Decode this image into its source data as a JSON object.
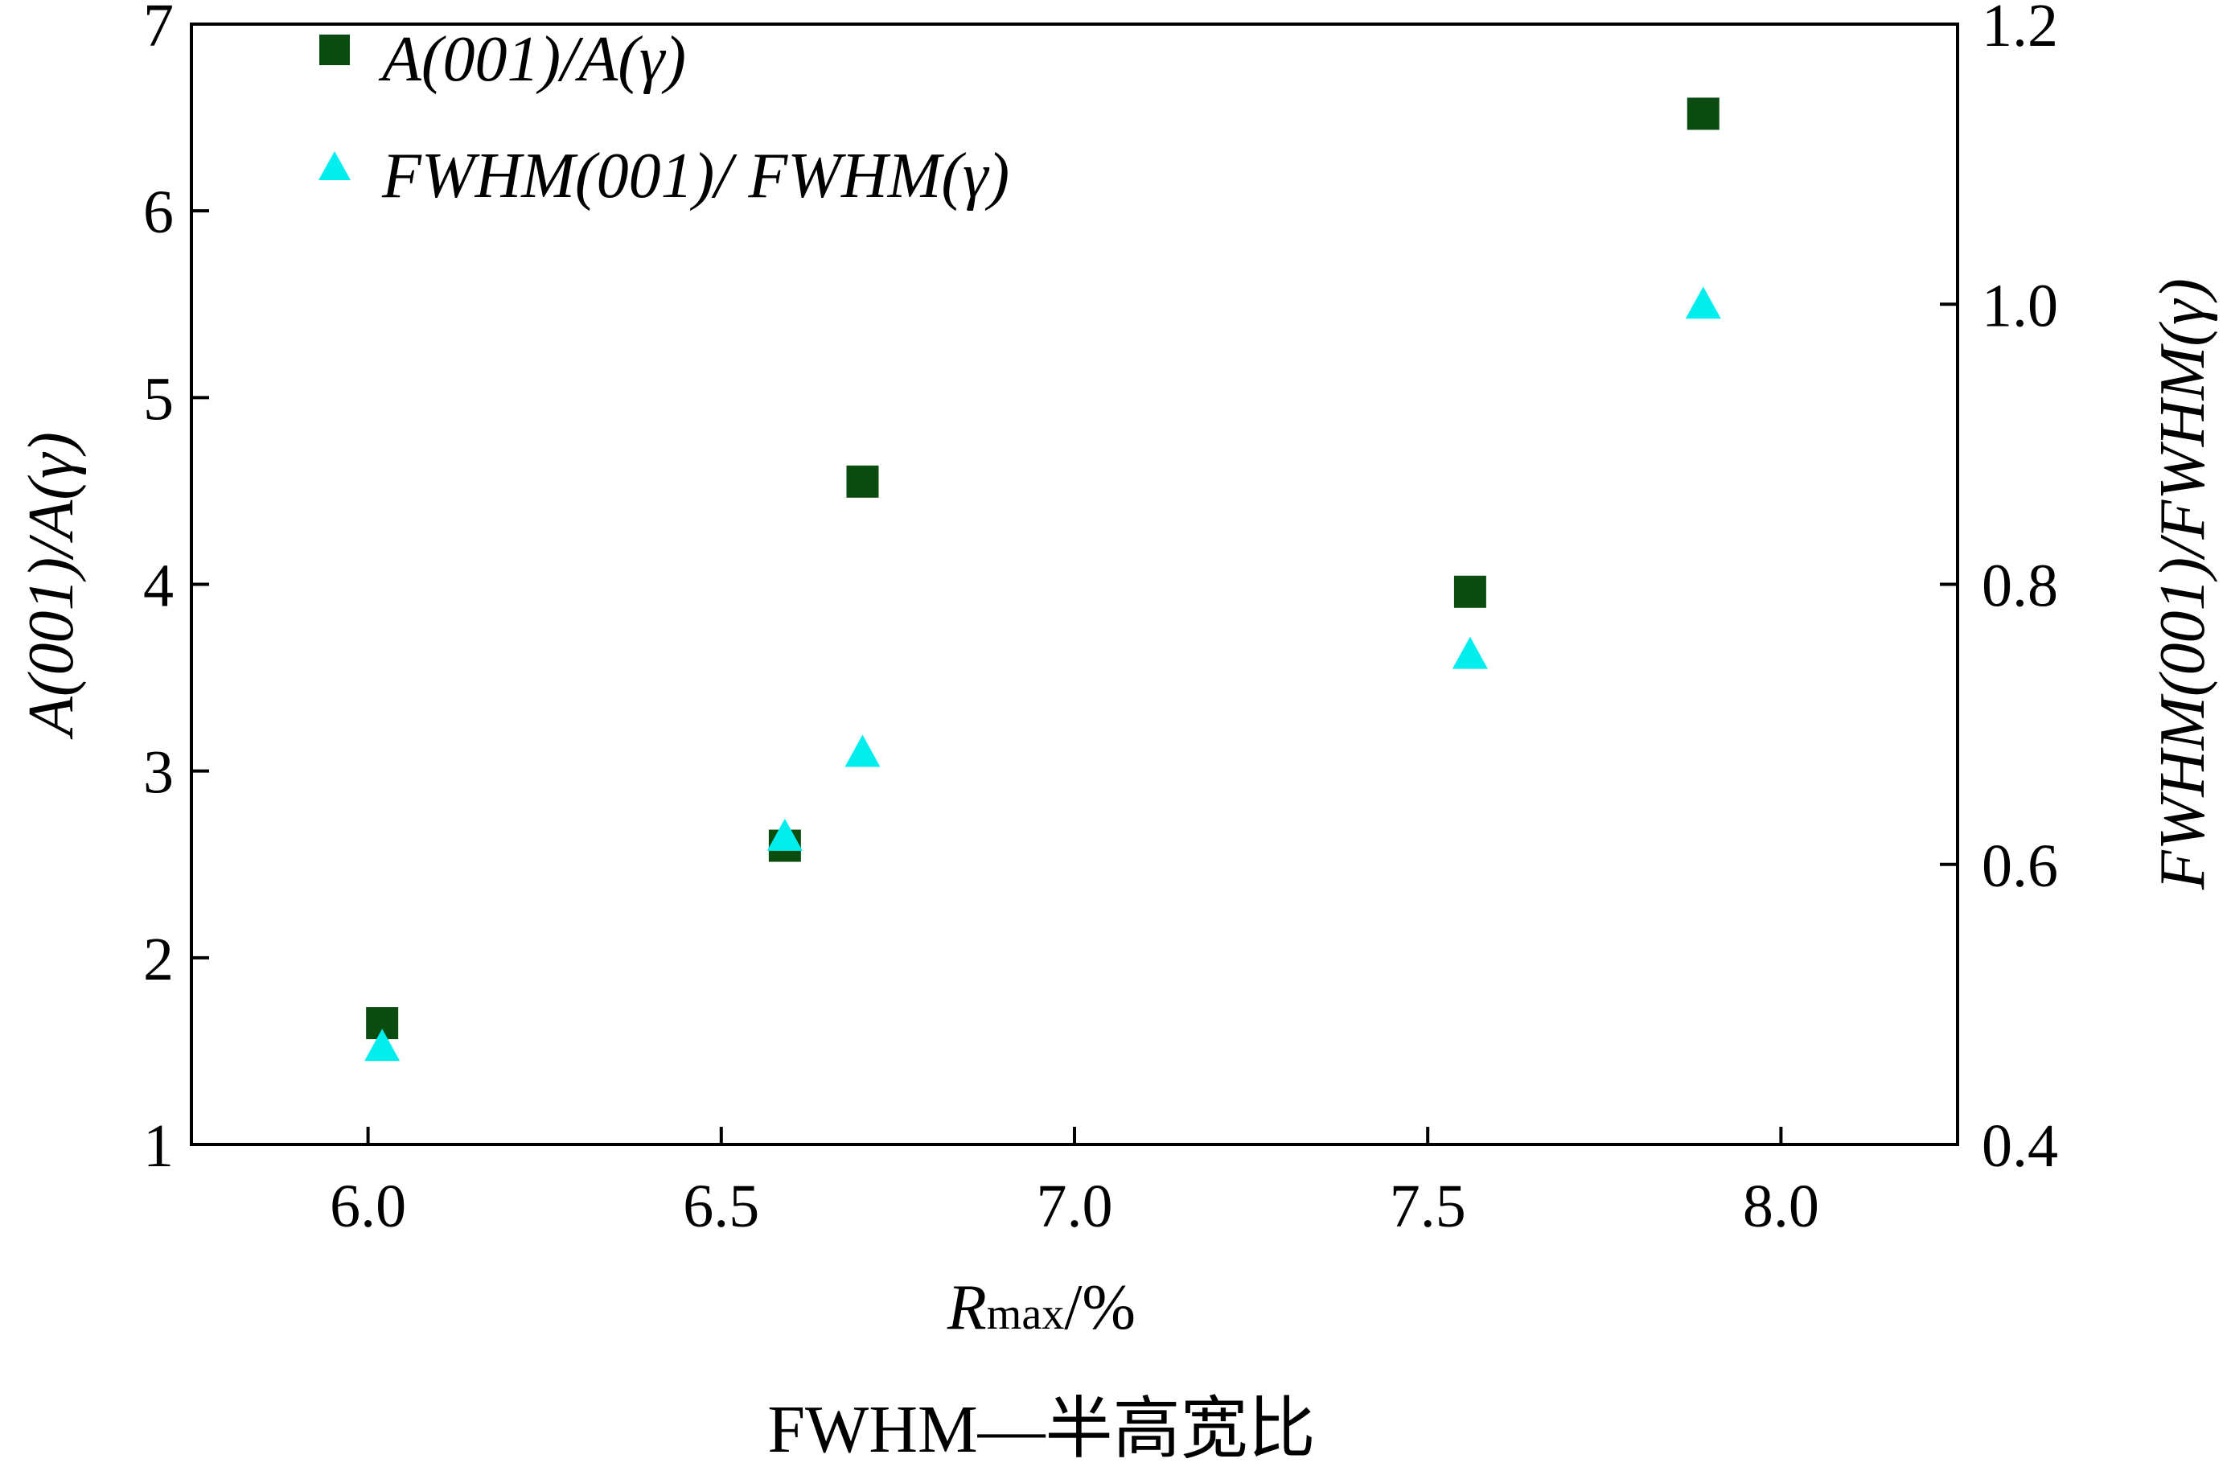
{
  "chart_data": {
    "type": "scatter",
    "x_axis": {
      "label_main": "R",
      "label_sub": "max",
      "label_suffix": "/%",
      "range": [
        5.75,
        8.25
      ],
      "ticks": [
        6.0,
        6.5,
        7.0,
        7.5,
        8.0
      ],
      "tick_labels": [
        "6.0",
        "6.5",
        "7.0",
        "7.5",
        "8.0"
      ]
    },
    "y_axis_left": {
      "label": "A(001)/A(γ)",
      "range": [
        1,
        7
      ],
      "ticks": [
        1,
        2,
        3,
        4,
        5,
        6,
        7
      ],
      "tick_labels": [
        "1",
        "2",
        "3",
        "4",
        "5",
        "6",
        "7"
      ]
    },
    "y_axis_right": {
      "label": "FWHM(001)/FWHM(γ)",
      "range": [
        0.4,
        1.2
      ],
      "ticks": [
        0.4,
        0.6,
        0.8,
        1.0,
        1.2
      ],
      "tick_labels": [
        "0.4",
        "0.6",
        "0.8",
        "1.0",
        "1.2"
      ]
    },
    "series": [
      {
        "name": "A(001)/A(γ)",
        "axis": "left",
        "marker": "square",
        "color": "#0b4d10",
        "points": [
          [
            6.02,
            1.65
          ],
          [
            6.59,
            2.6
          ],
          [
            6.7,
            4.55
          ],
          [
            7.56,
            3.96
          ],
          [
            7.89,
            6.52
          ]
        ]
      },
      {
        "name": "FWHM(001)/FWHM(γ)",
        "axis": "right",
        "marker": "triangle",
        "color": "#00eeee",
        "points": [
          [
            6.02,
            0.47
          ],
          [
            6.59,
            0.62
          ],
          [
            6.7,
            0.68
          ],
          [
            7.56,
            0.75
          ],
          [
            7.89,
            1.0
          ]
        ]
      }
    ],
    "legend": {
      "position": "top-left",
      "entries": [
        "A(001)/A(γ)",
        "FWHM(001)/ FWHM(γ)"
      ]
    },
    "caption": "FWHM—半高宽比",
    "grid": false
  }
}
